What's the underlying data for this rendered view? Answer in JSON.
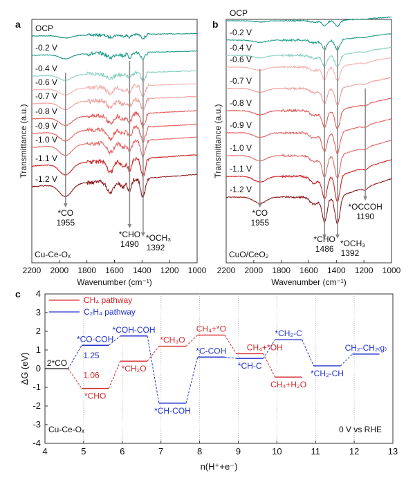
{
  "chart_data": [
    {
      "panel": "a",
      "type": "line",
      "sample": "Cu-Ce-Oₓ",
      "xlabel": "Wavenumber (cm⁻¹)",
      "ylabel": "Transmittance (a.u.)",
      "xlim": [
        2200,
        1000
      ],
      "xticks": [
        "2200",
        "2000",
        "1800",
        "1600",
        "1400",
        "1200",
        "1000"
      ],
      "series": [
        {
          "name": "OCP",
          "color": "#1b9484"
        },
        {
          "name": "-0.2 V",
          "color": "#259e8c"
        },
        {
          "name": "-0.4 V",
          "color": "#86cfc0"
        },
        {
          "name": "-0.6 V",
          "color": "#f5b2b2"
        },
        {
          "name": "-0.7 V",
          "color": "#ee9c9c"
        },
        {
          "name": "-0.8 V",
          "color": "#e15b5b"
        },
        {
          "name": "-0.9 V",
          "color": "#e86060"
        },
        {
          "name": "-1.0 V",
          "color": "#e06c6c"
        },
        {
          "name": "-1.1 V",
          "color": "#cf2222"
        },
        {
          "name": "-1.2 V",
          "color": "#8e1c1c"
        }
      ],
      "annotations": [
        {
          "species": "*CO",
          "wavenumber": "1955"
        },
        {
          "species": "*CHO",
          "wavenumber": "1490"
        },
        {
          "species": "*OCH₃",
          "wavenumber": "1392"
        }
      ]
    },
    {
      "panel": "b",
      "type": "line",
      "sample": "CuO/CeO₂",
      "xlabel": "Wavenumber (cm⁻¹)",
      "ylabel": "Transmittance (a.u.)",
      "xlim": [
        2200,
        1000
      ],
      "xticks": [
        "2200",
        "2000",
        "1800",
        "1600",
        "1400",
        "1200",
        "1000"
      ],
      "series": [
        {
          "name": "OCP",
          "color": "#1b9484"
        },
        {
          "name": "-0.2 V",
          "color": "#259e8c"
        },
        {
          "name": "-0.4 V",
          "color": "#86cfc0"
        },
        {
          "name": "-0.6 V",
          "color": "#f5b2b2"
        },
        {
          "name": "-0.7 V",
          "color": "#ee9c9c"
        },
        {
          "name": "-0.8 V",
          "color": "#e15b5b"
        },
        {
          "name": "-0.9 V",
          "color": "#e86060"
        },
        {
          "name": "-1.0 V",
          "color": "#e06c6c"
        },
        {
          "name": "-1.1 V",
          "color": "#cf2222"
        },
        {
          "name": "-1.2 V",
          "color": "#8e1c1c"
        }
      ],
      "annotations": [
        {
          "species": "*CO",
          "wavenumber": "1955"
        },
        {
          "species": "*CHO",
          "wavenumber": "1486"
        },
        {
          "species": "*OCH₃",
          "wavenumber": "1392"
        },
        {
          "species": "*OCCOH",
          "wavenumber": "1190"
        }
      ]
    },
    {
      "panel": "c",
      "type": "line",
      "sample": "Cu-Ce-Oₓ",
      "condition": "0 V vs RHE",
      "xlabel": "n(H⁺+e⁻)",
      "ylabel": "ΔG (eV)",
      "xlim": [
        4,
        13
      ],
      "ylim": [
        -4,
        4
      ],
      "xticks": [
        "4",
        "5",
        "6",
        "7",
        "8",
        "9",
        "10",
        "11",
        "12",
        "13"
      ],
      "yticks": [
        "4",
        "3",
        "2",
        "1",
        "0",
        "-1",
        "-2",
        "-3",
        "-4"
      ],
      "legend_position": "top-left",
      "shared_start": {
        "n": 4,
        "G": 0,
        "label": "2*CO"
      },
      "series": [
        {
          "name": "CH₄  pathway",
          "color": "#d42a2a",
          "levels": [
            {
              "n": 5,
              "G": -1.06,
              "label": "*CHO"
            },
            {
              "n": 6,
              "G": 0.4,
              "label": "*CH₂O"
            },
            {
              "n": 7,
              "G": 1.2,
              "label": "*CH₃O"
            },
            {
              "n": 8,
              "G": 1.8,
              "label": "CH₄+*O"
            },
            {
              "n": 9,
              "G": 0.8,
              "label": "CH₄+*OH"
            },
            {
              "n": 10,
              "G": -0.45,
              "label": "CH₄+H₂O"
            }
          ]
        },
        {
          "name": "C₂H₄ pathway",
          "color": "#2233cc",
          "levels": [
            {
              "n": 5,
              "G": 1.25,
              "label": "*CO-COH"
            },
            {
              "n": 6,
              "G": 1.75,
              "label": "*COH-COH"
            },
            {
              "n": 7,
              "G": -1.85,
              "label": "*CH-COH"
            },
            {
              "n": 8,
              "G": 0.62,
              "label": "*C-COH"
            },
            {
              "n": 9,
              "G": 0.55,
              "label": "*CH-C"
            },
            {
              "n": 10,
              "G": 1.55,
              "label": "*CH₂-C"
            },
            {
              "n": 11,
              "G": 0.15,
              "label": "*CH₂-CH"
            },
            {
              "n": 12,
              "G": 0.78,
              "label": "CH₂-CH₂₍g₎"
            }
          ]
        }
      ],
      "annotations": [
        {
          "text": "1.25",
          "color": "#2233cc"
        },
        {
          "text": "1.06",
          "color": "#d42a2a"
        }
      ]
    }
  ],
  "panel_labels": [
    "a",
    "b",
    "c"
  ]
}
